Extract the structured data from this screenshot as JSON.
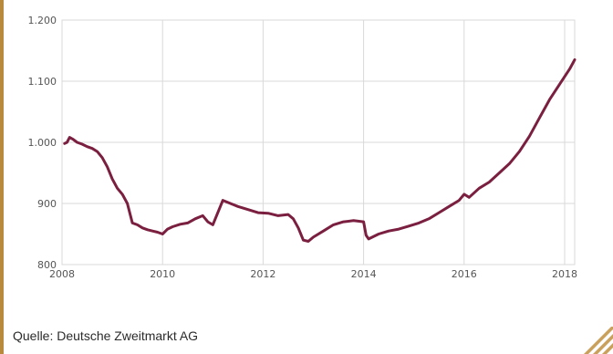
{
  "caption": "Quelle: Deutsche Zweitmarkt AG",
  "colors": {
    "line": "#7a1f3f",
    "grid": "#d9d9d9",
    "frame": "#b88a3e",
    "tick_text": "#555555"
  },
  "chart_data": {
    "type": "line",
    "title": "",
    "xlabel": "",
    "ylabel": "",
    "xlim": [
      2008,
      2018.2
    ],
    "ylim": [
      800,
      1200
    ],
    "x_ticks": [
      2008,
      2010,
      2012,
      2014,
      2016,
      2018
    ],
    "x_tick_labels": [
      "2008",
      "2010",
      "2012",
      "2014",
      "2016",
      "2018"
    ],
    "y_ticks": [
      800,
      900,
      1000,
      1100,
      1200
    ],
    "y_tick_labels": [
      "800",
      "900",
      "1.000",
      "1.100",
      "1.200"
    ],
    "grid": true,
    "series": [
      {
        "x": [
          2008.05,
          2008.1,
          2008.15,
          2008.22,
          2008.3,
          2008.4,
          2008.5,
          2008.6,
          2008.7,
          2008.8,
          2008.9,
          2009.0,
          2009.1,
          2009.2,
          2009.3,
          2009.4,
          2009.5,
          2009.6,
          2009.7,
          2009.8,
          2009.9,
          2010.0,
          2010.1,
          2010.2,
          2010.35,
          2010.5,
          2010.65,
          2010.8,
          2010.9,
          2011.0,
          2011.2,
          2011.35,
          2011.5,
          2011.7,
          2011.9,
          2012.1,
          2012.3,
          2012.5,
          2012.6,
          2012.7,
          2012.8,
          2012.9,
          2013.0,
          2013.2,
          2013.4,
          2013.6,
          2013.8,
          2014.0,
          2014.05,
          2014.1,
          2014.3,
          2014.5,
          2014.7,
          2014.9,
          2015.1,
          2015.3,
          2015.5,
          2015.7,
          2015.9,
          2016.0,
          2016.1,
          2016.3,
          2016.5,
          2016.7,
          2016.9,
          2017.1,
          2017.3,
          2017.5,
          2017.7,
          2017.9,
          2018.1,
          2018.2
        ],
        "values": [
          998,
          1000,
          1008,
          1005,
          1000,
          997,
          993,
          990,
          985,
          975,
          960,
          940,
          925,
          915,
          900,
          868,
          865,
          860,
          857,
          855,
          853,
          850,
          858,
          862,
          866,
          868,
          875,
          880,
          870,
          865,
          905,
          900,
          895,
          890,
          885,
          884,
          880,
          882,
          875,
          860,
          840,
          838,
          845,
          855,
          865,
          870,
          872,
          870,
          848,
          842,
          850,
          855,
          858,
          863,
          868,
          875,
          885,
          895,
          905,
          915,
          910,
          925,
          935,
          950,
          965,
          985,
          1010,
          1040,
          1070,
          1095,
          1120,
          1135
        ]
      }
    ]
  }
}
